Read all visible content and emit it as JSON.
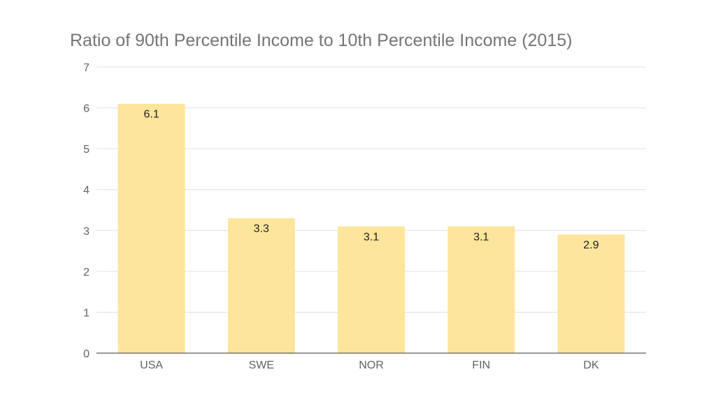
{
  "chart_data": {
    "type": "bar",
    "title": "Ratio of 90th Percentile Income to 10th Percentile Income (2015)",
    "categories": [
      "USA",
      "SWE",
      "NOR",
      "FIN",
      "DK"
    ],
    "values": [
      6.1,
      3.3,
      3.1,
      3.1,
      2.9
    ],
    "data_labels": [
      "6.1",
      "3.3",
      "3.1",
      "3.1",
      "2.9"
    ],
    "xlabel": "",
    "ylabel": "",
    "ylim": [
      0,
      7
    ],
    "y_ticks": [
      0,
      1,
      2,
      3,
      4,
      5,
      6,
      7
    ],
    "grid": true,
    "legend": "none",
    "bar_color": "#fde59b"
  }
}
